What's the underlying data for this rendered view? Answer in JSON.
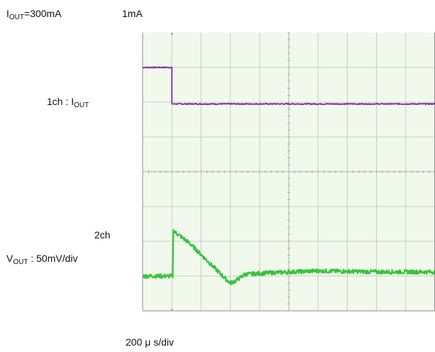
{
  "annotations": {
    "iout_pre": "300mA",
    "iout_post": "1mA",
    "ch1_prefix": "1ch : I",
    "ch2_label": "2ch",
    "vout_scale": " : 50mV/div",
    "time_scale": "200 μ s/div",
    "sym_I": "I",
    "sym_V": "V",
    "sub_out": "OUT",
    "equals": "="
  },
  "colors": {
    "plot_bg": "#f1f8ec",
    "grid": "#c6cfc3",
    "center_axis": "#a9b3a7",
    "frame": "#8e8e8e",
    "ch1": "#8a2aa8",
    "ch2": "#39c33d",
    "trigger": "#e08a2a"
  },
  "chart_data": {
    "type": "line",
    "title": "",
    "xlabel": "200 μ s/div",
    "ylabel": "",
    "grid": true,
    "divisions": {
      "x": 10,
      "y": 8
    },
    "xlim": [
      0,
      10
    ],
    "ylim": [
      0,
      8
    ],
    "trigger_x": 1.0,
    "series": [
      {
        "name": "1ch : IOUT",
        "x": [
          0,
          1.0,
          1.0,
          10
        ],
        "y": [
          7.0,
          7.0,
          5.95,
          5.95
        ],
        "noise": 0.015
      },
      {
        "name": "2ch VOUT : 50mV/div",
        "x": [
          0,
          0.5,
          1.0,
          1.03,
          1.05,
          1.6,
          2.2,
          2.8,
          3.0,
          3.15,
          3.5,
          4.5,
          6.0,
          8.0,
          10
        ],
        "y": [
          1.0,
          1.0,
          1.0,
          1.0,
          2.3,
          1.95,
          1.45,
          0.95,
          0.8,
          0.85,
          1.05,
          1.1,
          1.15,
          1.12,
          1.12
        ],
        "noise": 0.06
      }
    ]
  }
}
